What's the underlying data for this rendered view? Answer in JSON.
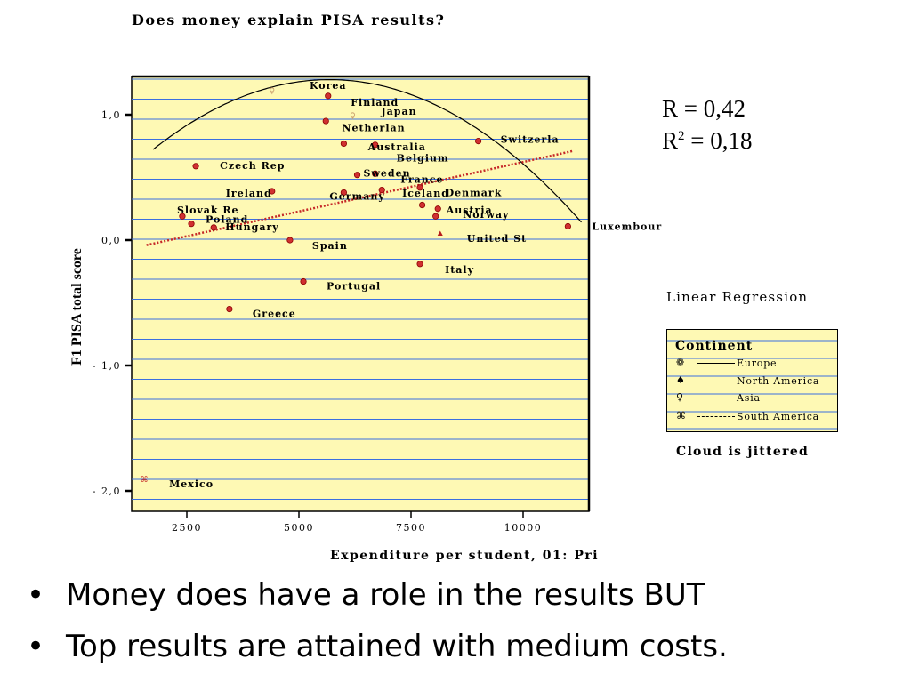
{
  "chart_data": {
    "type": "scatter",
    "title": "Does money explain PISA results?",
    "xlabel": "Expenditure per student, 01: Pri",
    "ylabel": "F1 PISA total score",
    "xlim": [
      1100,
      11500
    ],
    "ylim": [
      -2.12,
      1.3
    ],
    "xticks": [
      2500,
      5000,
      7500,
      10000
    ],
    "xtick_labels": [
      "2500",
      "5000",
      "7500",
      "10000"
    ],
    "yticks": [
      1.0,
      0.0,
      -1.0,
      -2.0
    ],
    "ytick_labels": [
      "1,0",
      "0,0",
      "- 1,0",
      "- 2,0"
    ],
    "grid": true,
    "legend_position": "right",
    "background_color": "#fef9b4",
    "grid_color": "#3a6fe0",
    "point_color": "#c62828",
    "series": [
      {
        "name": "Europe",
        "points": [
          {
            "label": "Finland",
            "x": 5600,
            "y": 0.95
          },
          {
            "label": "Netherlan",
            "x": 6000,
            "y": 0.77
          },
          {
            "label": "Australia",
            "x": 6700,
            "y": 0.76
          },
          {
            "label": "Belgium",
            "x": 6700,
            "y": 0.53
          },
          {
            "label": "Switzerla",
            "x": 9000,
            "y": 0.79
          },
          {
            "label": "Czech Rep",
            "x": 2700,
            "y": 0.59
          },
          {
            "label": "Sweden",
            "x": 6300,
            "y": 0.52
          },
          {
            "label": "France",
            "x": 6850,
            "y": 0.4
          },
          {
            "label": "Iceland",
            "x": 7700,
            "y": 0.42
          },
          {
            "label": "Germany",
            "x": 6000,
            "y": 0.38
          },
          {
            "label": "Ireland",
            "x": 4400,
            "y": 0.39
          },
          {
            "label": "Denmark",
            "x": 7750,
            "y": 0.28
          },
          {
            "label": "Austria",
            "x": 8050,
            "y": 0.19
          },
          {
            "label": "Norway",
            "x": 8100,
            "y": 0.25
          },
          {
            "label": "Slovak Re",
            "x": 2400,
            "y": 0.19
          },
          {
            "label": "Poland",
            "x": 2600,
            "y": 0.13
          },
          {
            "label": "Hungary",
            "x": 3100,
            "y": 0.1
          },
          {
            "label": "Spain",
            "x": 4800,
            "y": 0.0
          },
          {
            "label": "Luxembour",
            "x": 11000,
            "y": 0.11
          },
          {
            "label": "Italy",
            "x": 7700,
            "y": -0.19
          },
          {
            "label": "Portugal",
            "x": 5100,
            "y": -0.33
          },
          {
            "label": "Greece",
            "x": 3450,
            "y": -0.55
          },
          {
            "label": "Korea",
            "x": 5650,
            "y": 1.15
          }
        ]
      },
      {
        "name": "North America",
        "points": [
          {
            "label": "United St",
            "x": 8150,
            "y": 0.05
          }
        ]
      },
      {
        "name": "Asia",
        "points": [
          {
            "label": "Japan",
            "x": 6200,
            "y": 1.0
          },
          {
            "label": "",
            "x": 4400,
            "y": 1.2
          }
        ]
      },
      {
        "name": "South America",
        "points": [
          {
            "label": "Mexico",
            "x": 1550,
            "y": -1.9
          }
        ]
      }
    ],
    "linear_fit": {
      "x0": 1600,
      "y0": -0.04,
      "x1": 11100,
      "y1": 0.71
    },
    "quadratic_fit": {
      "a": -3.6e-08,
      "b": 0.000409,
      "c": 0.118,
      "x_from": 1750,
      "x_to": 11300
    }
  },
  "stats": {
    "r_text": "R = 0,42",
    "r2_prefix": "R",
    "r2_exp": "2",
    "r2_value": " = 0,18"
  },
  "regression_title": "Linear Regression",
  "legend": {
    "title": "Continent",
    "items": [
      {
        "label": "Europe",
        "symbol": "❁",
        "line_style": "solid",
        "icon": "europe-symbol-icon"
      },
      {
        "label": "North America",
        "symbol": "♠",
        "line_style": "none",
        "icon": "north-america-symbol-icon"
      },
      {
        "label": "Asia",
        "symbol": "♀",
        "line_style": "dashdot",
        "icon": "asia-symbol-icon"
      },
      {
        "label": "South America",
        "symbol": "⌘",
        "line_style": "dashed",
        "icon": "south-america-symbol-icon"
      }
    ]
  },
  "cloud_note": "Cloud is jittered",
  "bullets": [
    "Money does have a role in the results BUT",
    "Top results are attained with medium costs."
  ]
}
